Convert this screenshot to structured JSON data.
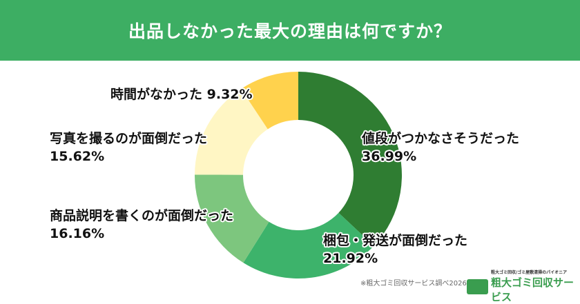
{
  "header": {
    "title": "出品しなかった最大の理由は何ですか？"
  },
  "chart_data": {
    "type": "pie",
    "donut": true,
    "title": "出品しなかった最大の理由は何ですか？",
    "categories": [
      "値段がつかなさそうだった",
      "梱包・発送が面倒だった",
      "商品説明を書くのが面倒だった",
      "写真を撮るのが面倒だった",
      "時間がなかった"
    ],
    "values": [
      36.99,
      21.92,
      16.16,
      15.62,
      9.32
    ],
    "value_labels": [
      "36.99%",
      "21.92%",
      "16.16%",
      "15.62%",
      "9.32%"
    ],
    "colors": [
      "#2f7d32",
      "#3db36b",
      "#7dc67e",
      "#fff6c4",
      "#ffd24d"
    ]
  },
  "footer": {
    "note": "※粗大ゴミ回収サービス調べ2026年2月",
    "logo_sub": "粗大ゴミ回収/ゴミ屋敷清掃のパイオニア",
    "logo_main": "粗大ゴミ回収サービス"
  }
}
